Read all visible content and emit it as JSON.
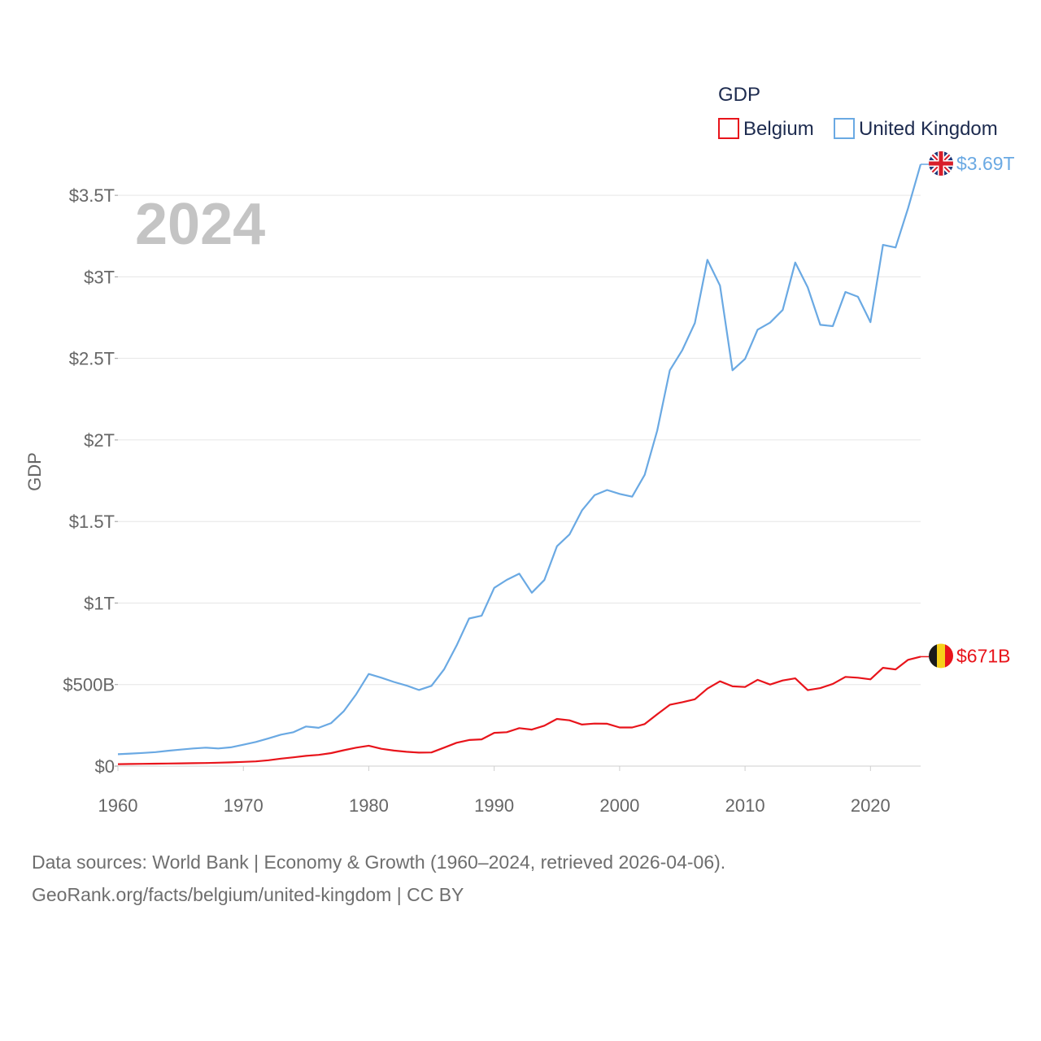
{
  "chart_data": {
    "type": "line",
    "title": "",
    "ylabel": "GDP",
    "xlabel": "",
    "year_label": "2024",
    "legend": {
      "title": "GDP",
      "position": "top-right"
    },
    "x_ticks": [
      "1960",
      "1970",
      "1980",
      "1990",
      "2000",
      "2010",
      "2020"
    ],
    "y_ticks": [
      {
        "value": 0,
        "label": "$0"
      },
      {
        "value": 500,
        "label": "$500B"
      },
      {
        "value": 1000,
        "label": "$1T"
      },
      {
        "value": 1500,
        "label": "$1.5T"
      },
      {
        "value": 2000,
        "label": "$2T"
      },
      {
        "value": 2500,
        "label": "$2.5T"
      },
      {
        "value": 3000,
        "label": "$3T"
      },
      {
        "value": 3500,
        "label": "$3.5T"
      }
    ],
    "xlim": [
      1960,
      2024
    ],
    "ylim": [
      0,
      3750
    ],
    "y_unit": "billions USD",
    "grid": true,
    "x": [
      1960,
      1961,
      1962,
      1963,
      1964,
      1965,
      1966,
      1967,
      1968,
      1969,
      1970,
      1971,
      1972,
      1973,
      1974,
      1975,
      1976,
      1977,
      1978,
      1979,
      1980,
      1981,
      1982,
      1983,
      1984,
      1985,
      1986,
      1987,
      1988,
      1989,
      1990,
      1991,
      1992,
      1993,
      1994,
      1995,
      1996,
      1997,
      1998,
      1999,
      2000,
      2001,
      2002,
      2003,
      2004,
      2005,
      2006,
      2007,
      2008,
      2009,
      2010,
      2011,
      2012,
      2013,
      2014,
      2015,
      2016,
      2017,
      2018,
      2019,
      2020,
      2021,
      2022,
      2023,
      2024
    ],
    "series": [
      {
        "name": "Belgium",
        "color": "#e8141b",
        "end_label": "$671B",
        "flag": "belgium-flag-icon",
        "values": [
          12,
          13,
          14,
          15,
          16,
          17,
          18,
          19,
          21,
          23,
          26,
          29,
          36,
          46,
          54,
          63,
          69,
          80,
          97,
          113,
          125,
          106,
          95,
          88,
          83,
          84,
          113,
          143,
          160,
          164,
          204,
          208,
          233,
          224,
          248,
          289,
          281,
          255,
          261,
          260,
          237,
          237,
          258,
          318,
          376,
          392,
          410,
          475,
          520,
          489,
          485,
          529,
          500,
          525,
          538,
          466,
          478,
          504,
          547,
          542,
          532,
          603,
          593,
          652,
          671
        ]
      },
      {
        "name": "United Kingdom",
        "color": "#6aa9e3",
        "end_label": "$3.69T",
        "flag": "uk-flag-icon",
        "values": [
          73,
          77,
          81,
          86,
          94,
          101,
          108,
          113,
          108,
          115,
          131,
          148,
          170,
          193,
          208,
          243,
          235,
          264,
          336,
          441,
          565,
          542,
          516,
          494,
          467,
          492,
          593,
          739,
          905,
          922,
          1093,
          1142,
          1180,
          1063,
          1141,
          1348,
          1420,
          1568,
          1661,
          1693,
          1669,
          1652,
          1786,
          2057,
          2427,
          2551,
          2717,
          3104,
          2946,
          2427,
          2497,
          2676,
          2719,
          2797,
          3088,
          2935,
          2706,
          2698,
          2907,
          2878,
          2722,
          3196,
          3180,
          3422,
          3690
        ]
      }
    ],
    "source_lines": [
      "Data sources: World Bank | Economy & Growth (1960–2024, retrieved 2026-04-06).",
      "GeoRank.org/facts/belgium/united-kingdom | CC BY"
    ]
  }
}
